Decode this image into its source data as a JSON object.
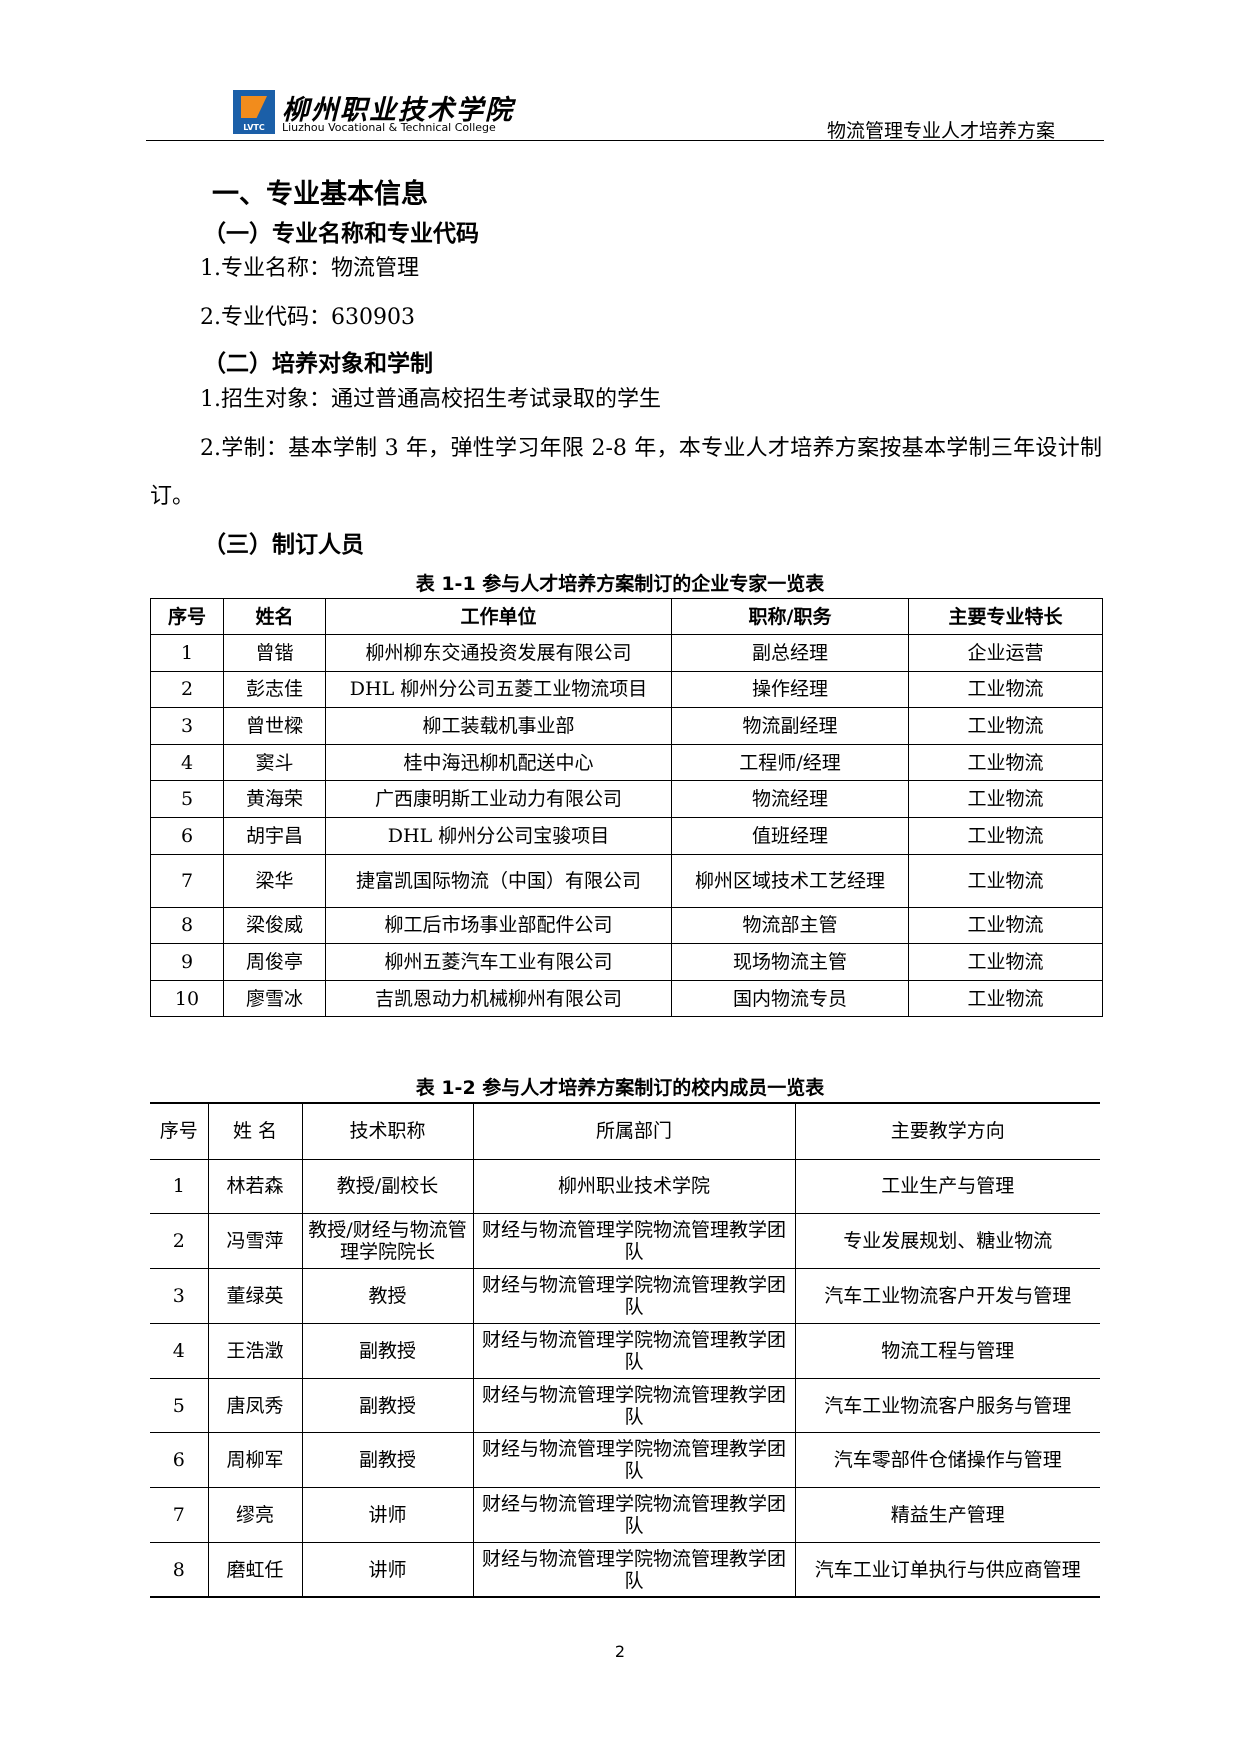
{
  "header": {
    "logo_abbr": "LVTC",
    "logo_cn": "柳州职业技术学院",
    "logo_en": "Liuzhou Vocational & Technical College",
    "doc_title": "物流管理专业人才培养方案"
  },
  "section": {
    "title": "一、专业基本信息",
    "sub1": {
      "title": "（一）专业名称和专业代码",
      "items": [
        "1.专业名称：物流管理",
        "2.专业代码：630903"
      ]
    },
    "sub2": {
      "title": "（二）培养对象和学制",
      "items": [
        "1.招生对象：通过普通高校招生考试录取的学生",
        "2.学制：基本学制 3 年，弹性学习年限 2-8 年，本专业人才培养方案按基本学制三年设计制订。"
      ]
    },
    "sub3": {
      "title": "（三）制订人员"
    }
  },
  "table1": {
    "caption": "表 1-1  参与人才培养方案制订的企业专家一览表",
    "headers": [
      "序号",
      "姓名",
      "工作单位",
      "职称/职务",
      "主要专业特长"
    ],
    "rows": [
      [
        "1",
        "曾锴",
        "柳州柳东交通投资发展有限公司",
        "副总经理",
        "企业运营"
      ],
      [
        "2",
        "彭志佳",
        "DHL 柳州分公司五菱工业物流项目",
        "操作经理",
        "工业物流"
      ],
      [
        "3",
        "曾世樑",
        "柳工装载机事业部",
        "物流副经理",
        "工业物流"
      ],
      [
        "4",
        "窦斗",
        "桂中海迅柳机配送中心",
        "工程师/经理",
        "工业物流"
      ],
      [
        "5",
        "黄海荣",
        "广西康明斯工业动力有限公司",
        "物流经理",
        "工业物流"
      ],
      [
        "6",
        "胡宇昌",
        "DHL 柳州分公司宝骏项目",
        "值班经理",
        "工业物流"
      ],
      [
        "7",
        "梁华",
        "捷富凯国际物流（中国）有限公司",
        "柳州区域技术工艺经理",
        "工业物流"
      ],
      [
        "8",
        "梁俊威",
        "柳工后市场事业部配件公司",
        "物流部主管",
        "工业物流"
      ],
      [
        "9",
        "周俊亭",
        "柳州五菱汽车工业有限公司",
        "现场物流主管",
        "工业物流"
      ],
      [
        "10",
        "廖雪冰",
        "吉凯恩动力机械柳州有限公司",
        "国内物流专员",
        "工业物流"
      ]
    ]
  },
  "table2": {
    "caption": "表 1-2  参与人才培养方案制订的校内成员一览表",
    "headers": [
      "序号",
      "姓 名",
      "技术职称",
      "所属部门",
      "主要教学方向"
    ],
    "rows": [
      [
        "1",
        "林若森",
        "教授/副校长",
        "柳州职业技术学院",
        "工业生产与管理"
      ],
      [
        "2",
        "冯雪萍",
        "教授/财经与物流管理学院院长",
        "财经与物流管理学院物流管理教学团队",
        "专业发展规划、糖业物流"
      ],
      [
        "3",
        "董绿英",
        "教授",
        "财经与物流管理学院物流管理教学团队",
        "汽车工业物流客户开发与管理"
      ],
      [
        "4",
        "王浩澂",
        "副教授",
        "财经与物流管理学院物流管理教学团队",
        "物流工程与管理"
      ],
      [
        "5",
        "唐凤秀",
        "副教授",
        "财经与物流管理学院物流管理教学团队",
        "汽车工业物流客户服务与管理"
      ],
      [
        "6",
        "周柳军",
        "副教授",
        "财经与物流管理学院物流管理教学团队",
        "汽车零部件仓储操作与管理"
      ],
      [
        "7",
        "缪亮",
        "讲师",
        "财经与物流管理学院物流管理教学团队",
        "精益生产管理"
      ],
      [
        "8",
        "磨虹任",
        "讲师",
        "财经与物流管理学院物流管理教学团队",
        "汽车工业订单执行与供应商管理"
      ]
    ]
  },
  "footer": {
    "page_number": "2"
  }
}
